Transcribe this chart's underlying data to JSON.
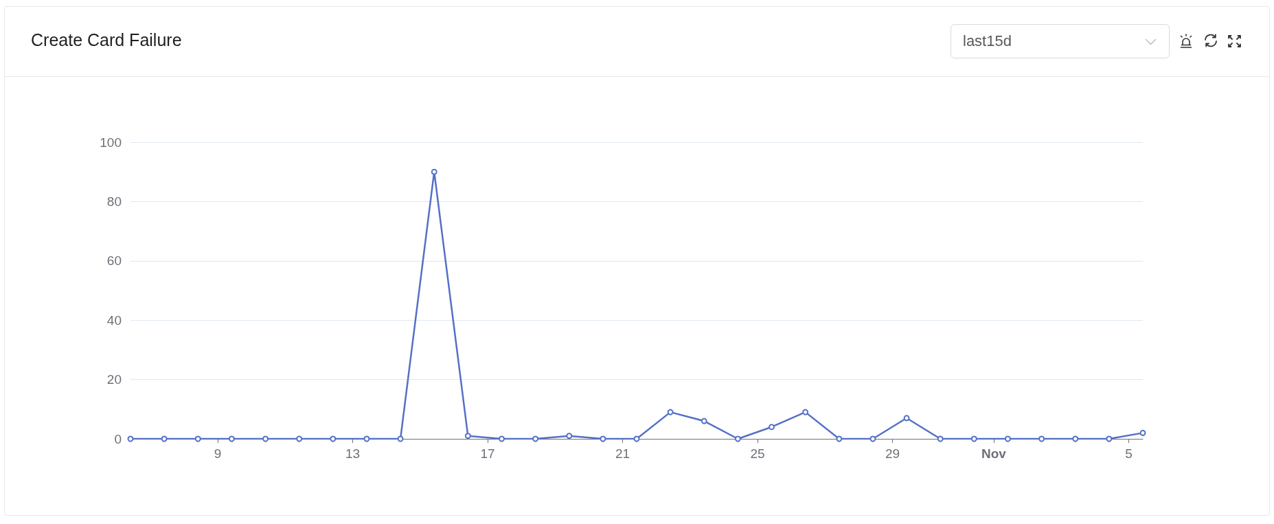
{
  "chart_data": {
    "type": "line",
    "title": "Create Card Failure",
    "annotations": [
      "last15d"
    ],
    "x": [
      "--10-06T10:00",
      "--10-07T10:00",
      "--10-08T10:00",
      "--10-09T10:00",
      "--10-10T10:00",
      "--10-11T10:00",
      "--10-12T10:00",
      "--10-13T10:00",
      "--10-14T10:00",
      "--10-15T10:00",
      "--10-16T10:00",
      "--10-17T10:00",
      "--10-18T10:00",
      "--10-19T10:00",
      "--10-20T10:00",
      "--10-21T10:00",
      "--10-22T10:00",
      "--10-23T10:00",
      "--10-24T10:00",
      "--10-25T10:00",
      "--10-26T10:00",
      "--10-27T10:00",
      "--10-28T10:00",
      "--10-29T10:00",
      "--10-30T10:00",
      "--10-31T10:00",
      "--11-01T10:00",
      "--11-02T10:00",
      "--11-03T10:00",
      "--11-04T10:00",
      "--11-05T10:00"
    ],
    "values": [
      0,
      0,
      0,
      0,
      0,
      0,
      0,
      0,
      0,
      90,
      1,
      0,
      0,
      1,
      0,
      0,
      9,
      6,
      0,
      4,
      9,
      0,
      0,
      7,
      0,
      0,
      0,
      0,
      0,
      0,
      2
    ],
    "color": "#5470c6",
    "xlim": [
      "--10-06T10:00",
      "--11-05T10:00"
    ],
    "xticks": [
      {
        "value": "--10-09",
        "label": "9"
      },
      {
        "value": "--10-13",
        "label": "13"
      },
      {
        "value": "--10-17",
        "label": "17"
      },
      {
        "value": "--10-21",
        "label": "21"
      },
      {
        "value": "--10-25",
        "label": "25"
      },
      {
        "value": "--10-29",
        "label": "29"
      },
      {
        "value": "--11-01",
        "label": "Nov"
      },
      {
        "value": "--11-05",
        "label": "5"
      }
    ],
    "ylim": [
      0,
      100
    ],
    "yticks": [
      0,
      20,
      40,
      60,
      80,
      100
    ],
    "grid": "y",
    "marker": "circle",
    "line_style": "solid"
  }
}
